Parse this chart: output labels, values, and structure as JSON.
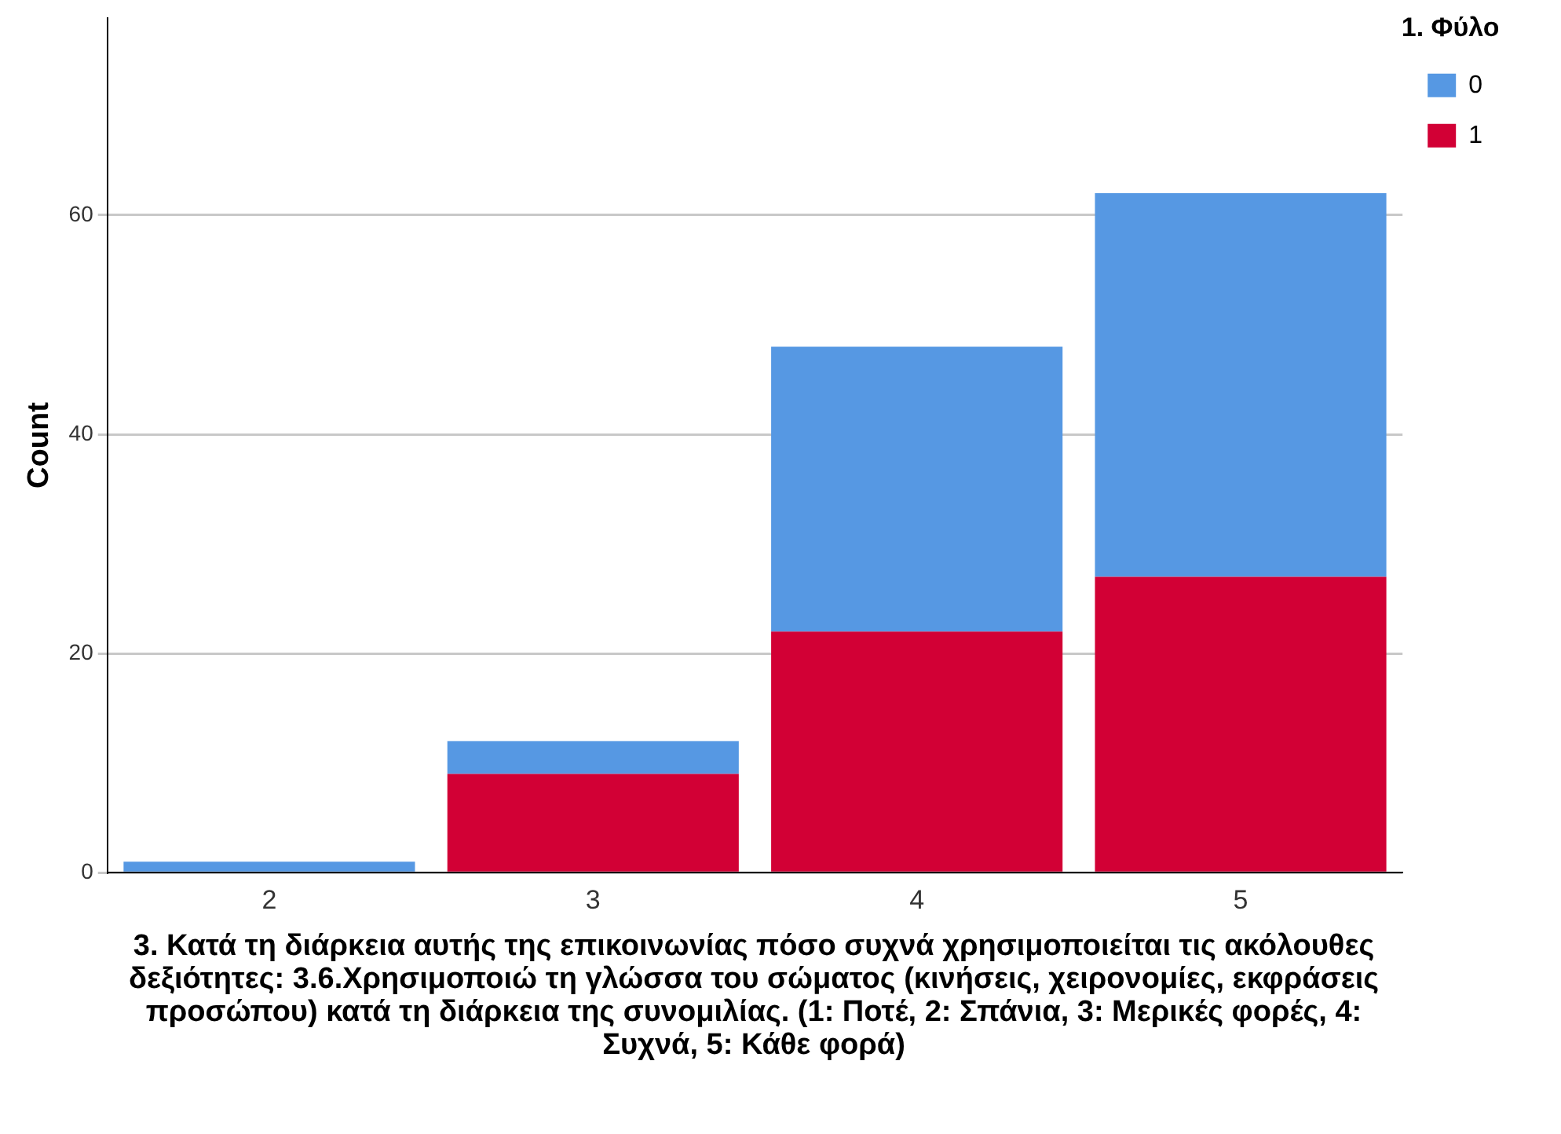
{
  "chart_data": {
    "type": "bar",
    "stacked": true,
    "categories": [
      "2",
      "3",
      "4",
      "5"
    ],
    "series": [
      {
        "name": "1",
        "color": "#d20035",
        "values": [
          0,
          9,
          22,
          27
        ]
      },
      {
        "name": "0",
        "color": "#5698e3",
        "values": [
          1,
          3,
          26,
          35
        ]
      }
    ],
    "ylabel": "Count",
    "xlabel": "3. Κατά τη διάρκεια αυτής της επικοινωνίας πόσο συχνά χρησιμοποιείται τις ακόλουθες δεξιότητες: 3.6.Χρησιμοποιώ τη γλώσσα του σώματος (κινήσεις, χειρονομίες, εκφράσεις προσώπου) κατά τη διάρκεια της συνομιλίας. (1: Ποτέ, 2: Σπάνια, 3: Μερικές φορές, 4: Συχνά, 5: Κάθε φορά)",
    "legend_title": "1. Φύλο",
    "legend": "top right",
    "grid": "y",
    "ylim": [
      0,
      78
    ],
    "yticks": [
      0,
      20,
      40,
      60
    ]
  }
}
